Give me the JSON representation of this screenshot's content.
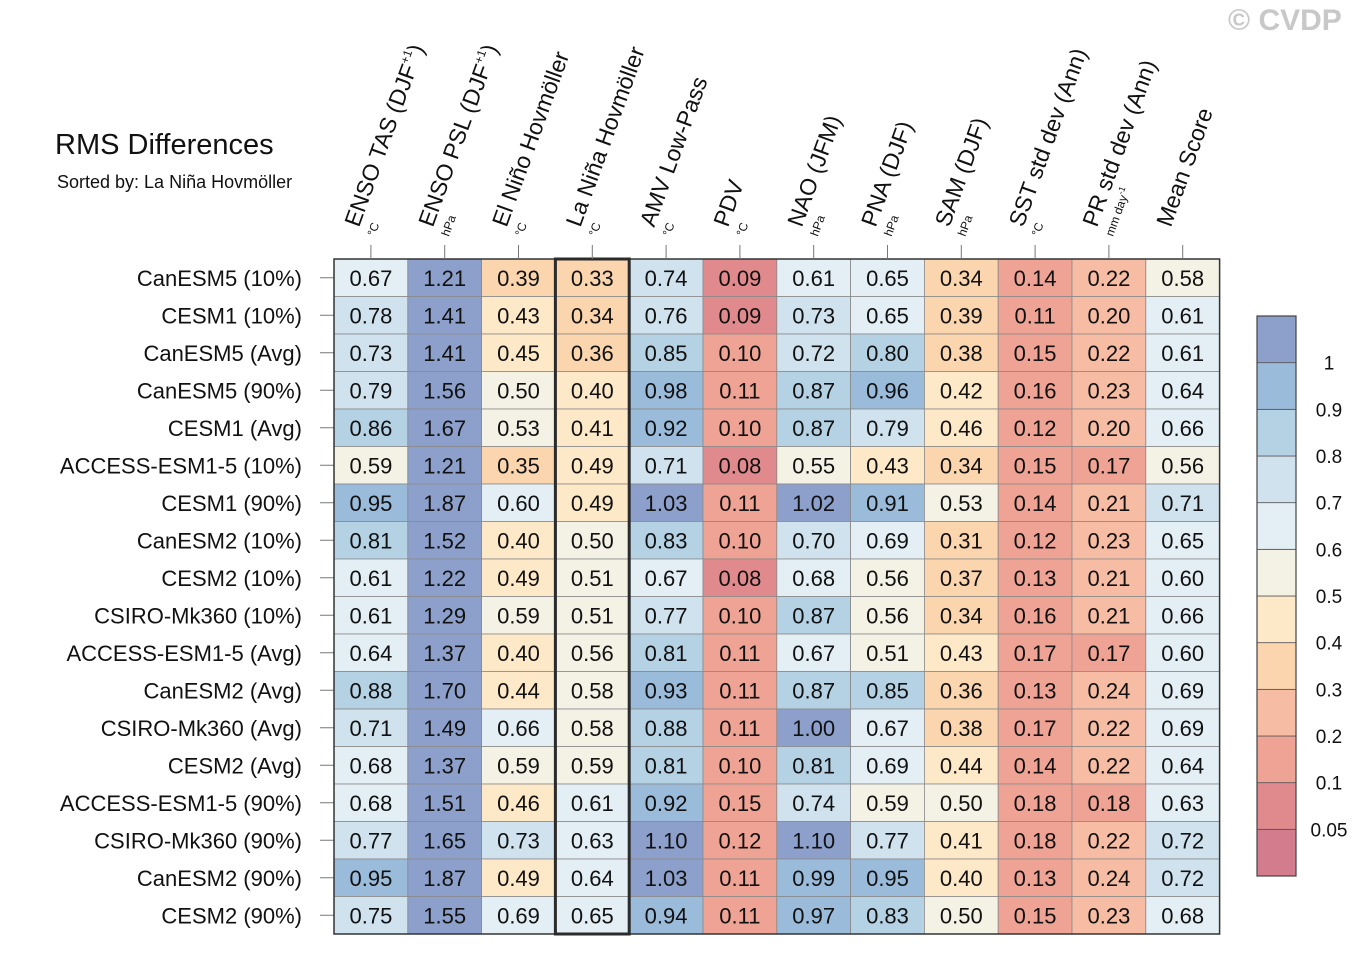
{
  "watermark": "© CVDP",
  "chart_data": {
    "type": "heatmap",
    "title": "RMS Differences",
    "subtitle": "Sorted by: La Niña Hovmöller",
    "columns": [
      {
        "name": "ENSO TAS (DJF+1)",
        "main": "ENSO TAS (DJF",
        "sup": "+1",
        "tail": ")",
        "unit": "°C",
        "unit_sup": ""
      },
      {
        "name": "ENSO PSL (DJF+1)",
        "main": "ENSO PSL (DJF",
        "sup": "+1",
        "tail": ")",
        "unit": "hPa",
        "unit_sup": ""
      },
      {
        "name": "El Niño Hovmöller",
        "main": "El Niño Hovmöller",
        "sup": "",
        "tail": "",
        "unit": "°C",
        "unit_sup": ""
      },
      {
        "name": "La Niña Hovmöller",
        "main": "La Niña Hovmöller",
        "sup": "",
        "tail": "",
        "unit": "°C",
        "unit_sup": ""
      },
      {
        "name": "AMV Low-Pass",
        "main": "AMV Low-Pass",
        "sup": "",
        "tail": "",
        "unit": "°C",
        "unit_sup": ""
      },
      {
        "name": "PDV",
        "main": "PDV",
        "sup": "",
        "tail": "",
        "unit": "°C",
        "unit_sup": ""
      },
      {
        "name": "NAO (JFM)",
        "main": "NAO (JFM)",
        "sup": "",
        "tail": "",
        "unit": "hPa",
        "unit_sup": ""
      },
      {
        "name": "PNA (DJF)",
        "main": "PNA (DJF)",
        "sup": "",
        "tail": "",
        "unit": "hPa",
        "unit_sup": ""
      },
      {
        "name": "SAM (DJF)",
        "main": "SAM (DJF)",
        "sup": "",
        "tail": "",
        "unit": "hPa",
        "unit_sup": ""
      },
      {
        "name": "SST std dev (Ann)",
        "main": "SST std dev (Ann)",
        "sup": "",
        "tail": "",
        "unit": "°C",
        "unit_sup": ""
      },
      {
        "name": "PR std dev (Ann)",
        "main": "PR std dev (Ann)",
        "sup": "",
        "tail": "",
        "unit": "mm day",
        "unit_sup": "-1"
      },
      {
        "name": "Mean Score",
        "main": "Mean Score",
        "sup": "",
        "tail": "",
        "unit": "",
        "unit_sup": ""
      }
    ],
    "rows": [
      {
        "label": "CanESM5 (10%)",
        "values": [
          0.67,
          1.21,
          0.39,
          0.33,
          0.74,
          0.09,
          0.61,
          0.65,
          0.34,
          0.14,
          0.22,
          0.58
        ]
      },
      {
        "label": "CESM1 (10%)",
        "values": [
          0.78,
          1.41,
          0.43,
          0.34,
          0.76,
          0.09,
          0.73,
          0.65,
          0.39,
          0.11,
          0.2,
          0.61
        ]
      },
      {
        "label": "CanESM5 (Avg)",
        "values": [
          0.73,
          1.41,
          0.45,
          0.36,
          0.85,
          0.1,
          0.72,
          0.8,
          0.38,
          0.15,
          0.22,
          0.61
        ]
      },
      {
        "label": "CanESM5 (90%)",
        "values": [
          0.79,
          1.56,
          0.5,
          0.4,
          0.98,
          0.11,
          0.87,
          0.96,
          0.42,
          0.16,
          0.23,
          0.64
        ]
      },
      {
        "label": "CESM1 (Avg)",
        "values": [
          0.86,
          1.67,
          0.53,
          0.41,
          0.92,
          0.1,
          0.87,
          0.79,
          0.46,
          0.12,
          0.2,
          0.66
        ]
      },
      {
        "label": "ACCESS-ESM1-5 (10%)",
        "values": [
          0.59,
          1.21,
          0.35,
          0.49,
          0.71,
          0.08,
          0.55,
          0.43,
          0.34,
          0.15,
          0.17,
          0.56
        ]
      },
      {
        "label": "CESM1 (90%)",
        "values": [
          0.95,
          1.87,
          0.6,
          0.49,
          1.03,
          0.11,
          1.02,
          0.91,
          0.53,
          0.14,
          0.21,
          0.71
        ]
      },
      {
        "label": "CanESM2 (10%)",
        "values": [
          0.81,
          1.52,
          0.4,
          0.5,
          0.83,
          0.1,
          0.7,
          0.69,
          0.31,
          0.12,
          0.23,
          0.65
        ]
      },
      {
        "label": "CESM2 (10%)",
        "values": [
          0.61,
          1.22,
          0.49,
          0.51,
          0.67,
          0.08,
          0.68,
          0.56,
          0.37,
          0.13,
          0.21,
          0.6
        ]
      },
      {
        "label": "CSIRO-Mk360 (10%)",
        "values": [
          0.61,
          1.29,
          0.59,
          0.51,
          0.77,
          0.1,
          0.87,
          0.56,
          0.34,
          0.16,
          0.21,
          0.66
        ]
      },
      {
        "label": "ACCESS-ESM1-5 (Avg)",
        "values": [
          0.64,
          1.37,
          0.4,
          0.56,
          0.81,
          0.11,
          0.67,
          0.51,
          0.43,
          0.17,
          0.17,
          0.6
        ]
      },
      {
        "label": "CanESM2 (Avg)",
        "values": [
          0.88,
          1.7,
          0.44,
          0.58,
          0.93,
          0.11,
          0.87,
          0.85,
          0.36,
          0.13,
          0.24,
          0.69
        ]
      },
      {
        "label": "CSIRO-Mk360 (Avg)",
        "values": [
          0.71,
          1.49,
          0.66,
          0.58,
          0.88,
          0.11,
          1.0,
          0.67,
          0.38,
          0.17,
          0.22,
          0.69
        ]
      },
      {
        "label": "CESM2 (Avg)",
        "values": [
          0.68,
          1.37,
          0.59,
          0.59,
          0.81,
          0.1,
          0.81,
          0.69,
          0.44,
          0.14,
          0.22,
          0.64
        ]
      },
      {
        "label": "ACCESS-ESM1-5 (90%)",
        "values": [
          0.68,
          1.51,
          0.46,
          0.61,
          0.92,
          0.15,
          0.74,
          0.59,
          0.5,
          0.18,
          0.18,
          0.63
        ]
      },
      {
        "label": "CSIRO-Mk360 (90%)",
        "values": [
          0.77,
          1.65,
          0.73,
          0.63,
          1.1,
          0.12,
          1.1,
          0.77,
          0.41,
          0.18,
          0.22,
          0.72
        ]
      },
      {
        "label": "CanESM2 (90%)",
        "values": [
          0.95,
          1.87,
          0.49,
          0.64,
          1.03,
          0.11,
          0.99,
          0.95,
          0.4,
          0.13,
          0.24,
          0.72
        ]
      },
      {
        "label": "CESM2 (90%)",
        "values": [
          0.75,
          1.55,
          0.69,
          0.65,
          0.94,
          0.11,
          0.97,
          0.83,
          0.5,
          0.15,
          0.23,
          0.68
        ]
      }
    ],
    "highlighted_column": "La Niña Hovmöller",
    "colorbar": {
      "boundaries": [
        0.05,
        0.1,
        0.2,
        0.3,
        0.4,
        0.5,
        0.6,
        0.7,
        0.8,
        0.9,
        1
      ],
      "labels": [
        "1",
        "0.9",
        "0.8",
        "0.7",
        "0.6",
        "0.5",
        "0.4",
        "0.3",
        "0.2",
        "0.1",
        "0.05"
      ],
      "colors_low_to_high": [
        "#d27c8e",
        "#e08a8d",
        "#eea394",
        "#f7bda4",
        "#fbd5ae",
        "#fde8c8",
        "#f4f1e5",
        "#e3eff5",
        "#cfe2ee",
        "#b5d2e5",
        "#9bbbdb",
        "#8da0cb"
      ]
    }
  }
}
